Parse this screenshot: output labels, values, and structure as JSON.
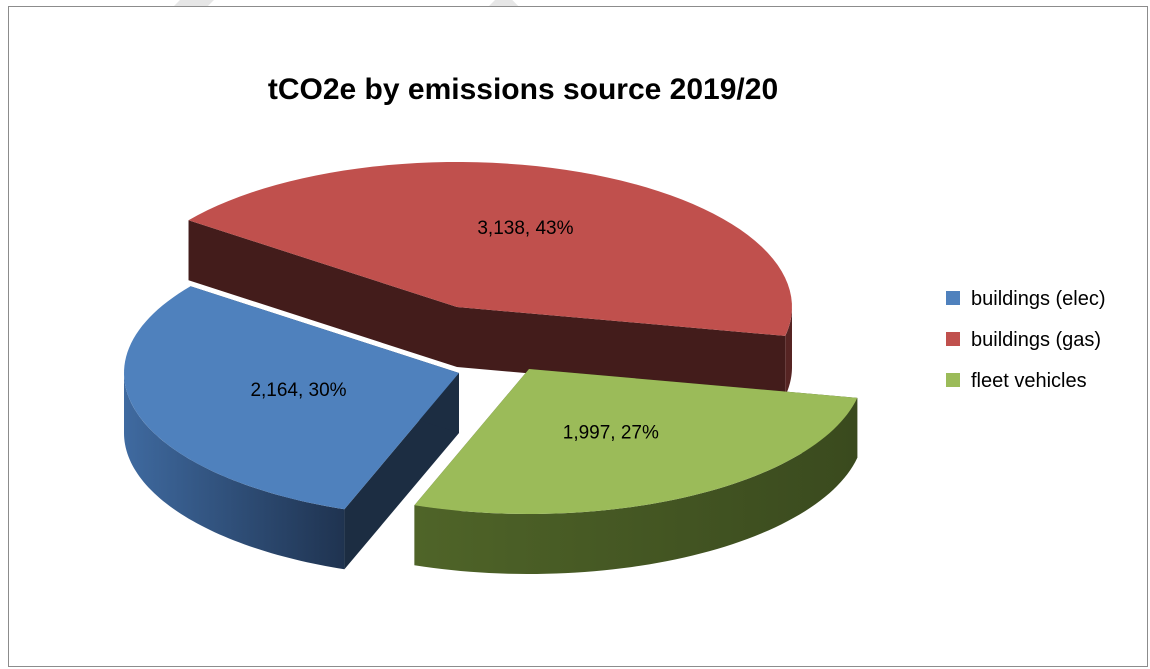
{
  "chart_data": {
    "type": "pie",
    "title": "tCO2e by emissions source 2019/20",
    "slices": [
      {
        "name": "buildings (elec)",
        "value": 2164,
        "percent": 30,
        "label": "2,164, 30%",
        "color": "#4F81BD"
      },
      {
        "name": "buildings (gas)",
        "value": 3138,
        "percent": 43,
        "label": "3,138, 43%",
        "color": "#C0504D"
      },
      {
        "name": "fleet vehicles",
        "value": 1997,
        "percent": 27,
        "label": "1,997, 27%",
        "color": "#9BBB59"
      }
    ],
    "legend_position": "right",
    "style": "3d-exploded"
  }
}
